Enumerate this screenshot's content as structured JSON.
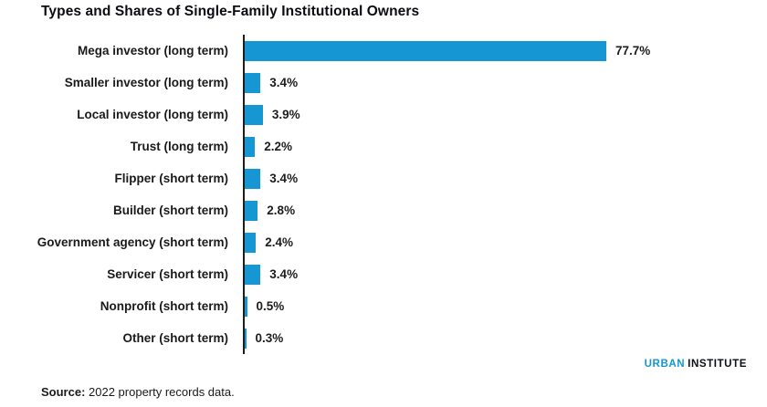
{
  "chart": {
    "title": "Types and Shares of Single-Family Institutional Owners"
  },
  "chart_data": {
    "type": "bar",
    "orientation": "horizontal",
    "title": "Types and Shares of Single-Family Institutional Owners",
    "xlabel": "",
    "ylabel": "",
    "categories": [
      "Mega investor (long term)",
      "Smaller investor (long term)",
      "Local investor (long term)",
      "Trust (long term)",
      "Flipper (short term)",
      "Builder (short term)",
      "Government agency (short term)",
      "Servicer (short term)",
      "Nonprofit (short term)",
      "Other (short term)"
    ],
    "values": [
      77.7,
      3.4,
      3.9,
      2.2,
      3.4,
      2.8,
      2.4,
      3.4,
      0.5,
      0.3
    ],
    "value_labels": [
      "77.7%",
      "3.4%",
      "3.9%",
      "2.2%",
      "3.4%",
      "2.8%",
      "2.4%",
      "3.4%",
      "0.5%",
      "0.3%"
    ],
    "unit": "%",
    "bar_color": "#1696d2",
    "axis_color": "#1d1d1d",
    "grid": false,
    "legend": false,
    "data_labels_position": "right-of-bar"
  },
  "footer": {
    "source_label": "Source:",
    "source_text": " 2022 property records data.",
    "logo_part1": "URBAN",
    "logo_part2": "INSTITUTE"
  }
}
